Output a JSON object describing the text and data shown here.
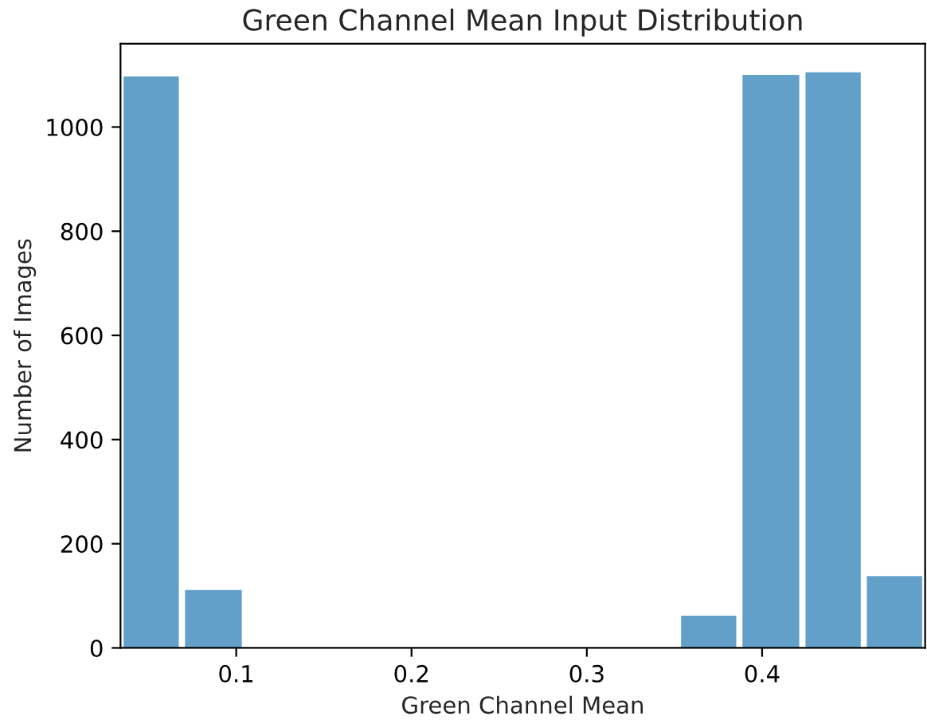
{
  "chart_data": {
    "type": "histogram",
    "title": "Green Channel Mean Input Distribution",
    "xlabel": "Green Channel Mean",
    "ylabel": "Number of Images",
    "bins": [
      0.034,
      0.069,
      0.105,
      0.352,
      0.387,
      0.423,
      0.458,
      0.493
    ],
    "values": [
      1097,
      111,
      0,
      62,
      1100,
      1105,
      138
    ],
    "color": "#62a0ca",
    "xlim": [
      0.034,
      0.493
    ],
    "xticks": [
      0.1,
      0.2,
      0.3,
      0.4
    ],
    "ylim": [
      0,
      1160
    ],
    "yticks": [
      0,
      200,
      400,
      600,
      800,
      1000
    ],
    "grid": false
  }
}
